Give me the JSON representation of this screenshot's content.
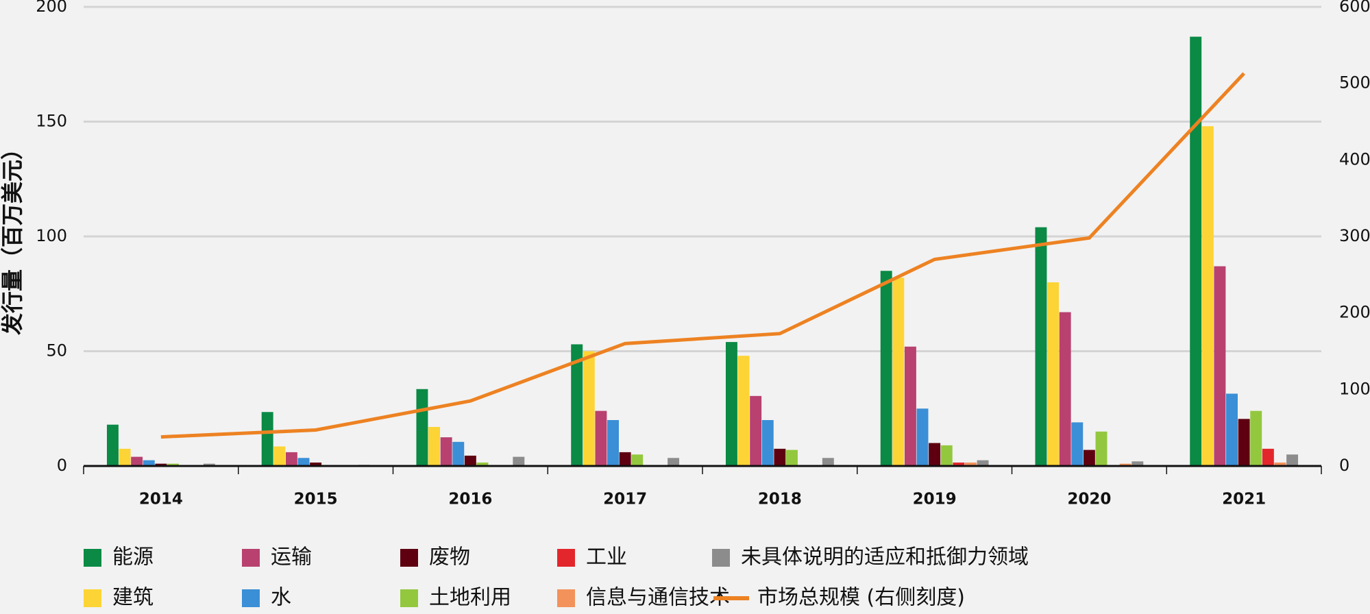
{
  "chart_data": {
    "type": "bar",
    "ylabel": "发行量（百万美元）",
    "categories": [
      "2014",
      "2015",
      "2016",
      "2017",
      "2018",
      "2019",
      "2020",
      "2021"
    ],
    "ylim": [
      0,
      200
    ],
    "yticks": [
      0,
      50,
      100,
      150,
      200
    ],
    "y2lim": [
      0,
      600
    ],
    "y2ticks": [
      0,
      100,
      200,
      300,
      400,
      500,
      600
    ],
    "grid": true,
    "series": [
      {
        "name": "能源",
        "color": "#0a8a45",
        "values": [
          18,
          23.5,
          33.5,
          53,
          54,
          85,
          104,
          187
        ]
      },
      {
        "name": "建筑",
        "color": "#fdd435",
        "values": [
          7.5,
          8.5,
          17,
          50,
          48,
          82,
          80,
          148
        ]
      },
      {
        "name": "运输",
        "color": "#b8416f",
        "values": [
          4,
          6,
          12.5,
          24,
          30.5,
          52,
          67,
          87
        ]
      },
      {
        "name": "水",
        "color": "#3a8fd6",
        "values": [
          2.5,
          3.5,
          10.5,
          20,
          20,
          25,
          19,
          31.5
        ]
      },
      {
        "name": "废物",
        "color": "#5e0010",
        "values": [
          1,
          1.5,
          4.5,
          6,
          7.5,
          10,
          7,
          20.5
        ]
      },
      {
        "name": "土地利用",
        "color": "#93c83e",
        "values": [
          1,
          0,
          1.5,
          5,
          7,
          9,
          15,
          24
        ]
      },
      {
        "name": "工业",
        "color": "#e3262b",
        "values": [
          0,
          0,
          0,
          0,
          0,
          1.5,
          0,
          7.5
        ]
      },
      {
        "name": "信息与通信技术",
        "color": "#f3925a",
        "values": [
          0,
          0,
          0,
          0,
          0,
          1.5,
          1,
          1.5
        ]
      },
      {
        "name": "未具体说明的适应和抵御力领域",
        "color": "#8c8c8c",
        "values": [
          1,
          0.5,
          4,
          3.5,
          3.5,
          2.5,
          2,
          5
        ]
      },
      {
        "name": "市场总规模 (右侧刻度)",
        "color": "#ed8222",
        "type": "line",
        "axis": "y2",
        "values": [
          38,
          47,
          85,
          160,
          173,
          270,
          298,
          513
        ]
      }
    ]
  }
}
